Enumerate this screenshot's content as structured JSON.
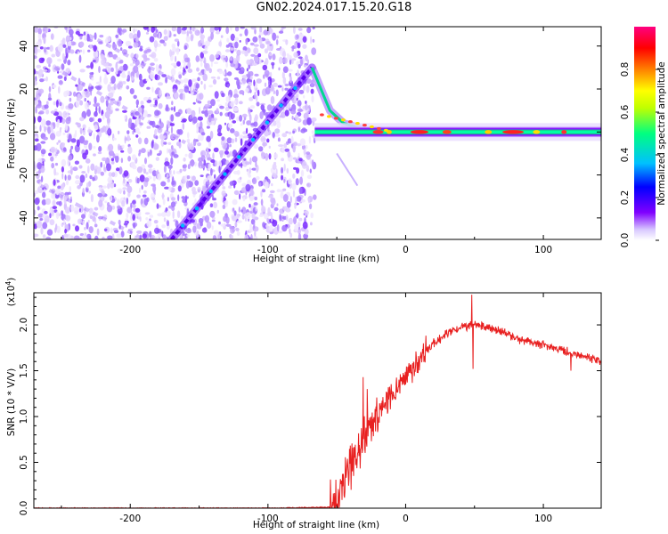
{
  "title": "GN02.2024.017.15.20.G18",
  "chart_data": [
    {
      "type": "heatmap",
      "name": "spectrogram",
      "xlabel": "Height of straight line (km)",
      "ylabel": "Frequency (Hz)",
      "xlim": [
        -270,
        142
      ],
      "ylim": [
        -50,
        49
      ],
      "xticks": [
        -200,
        -100,
        0,
        100
      ],
      "yticks": [
        -40,
        -20,
        0,
        20,
        40
      ],
      "colorbar": {
        "label": "Normalized spectral amplitude",
        "range": [
          0,
          1
        ],
        "ticks": [
          0.0,
          0.2,
          0.4,
          0.6,
          0.8
        ],
        "tick_labels": [
          "0.0",
          "0.2",
          "0.4",
          "0.6",
          "0.8"
        ],
        "colors": [
          "#ffffff",
          "#8000ff",
          "#0000ff",
          "#00c0ff",
          "#00ff80",
          "#ffff00",
          "#ff8000",
          "#ff0000",
          "#ff0080"
        ]
      },
      "noise_region": {
        "x": [
          -270,
          -66
        ],
        "y": [
          -50,
          49
        ]
      },
      "features": [
        {
          "name": "rising-trace",
          "x": [
            -170,
            -68
          ],
          "y": [
            -50,
            30
          ]
        },
        {
          "name": "drop",
          "x": [
            -68,
            -55,
            -45,
            -30
          ],
          "y": [
            30,
            10,
            4,
            1
          ]
        },
        {
          "name": "faint-branch",
          "x": [
            -50,
            -35
          ],
          "y": [
            -10,
            -25
          ]
        },
        {
          "name": "main-trace",
          "x": [
            -66,
            142
          ],
          "y": [
            0,
            0
          ]
        }
      ],
      "grid": false
    },
    {
      "type": "line",
      "name": "snr",
      "xlabel": "Height of straight line (km)",
      "ylabel": "SNR (10 * V/V)",
      "multiplier_label": "(x10",
      "multiplier_exp": "4",
      "xlim": [
        -270,
        142
      ],
      "ylim": [
        0,
        2.35
      ],
      "xticks": [
        -200,
        -100,
        0,
        100
      ],
      "yticks": [
        0.0,
        0.5,
        1.0,
        1.5,
        2.0
      ],
      "ytick_labels": [
        "0.0",
        "0.5",
        "1.0",
        "1.5",
        "2.0"
      ],
      "color": "#e82020",
      "series": [
        {
          "x": [
            -270,
            -200,
            -100,
            -55,
            -50,
            -45,
            -40,
            -35,
            -30,
            -25,
            -20,
            -15,
            -10,
            -5,
            0,
            5,
            10,
            15,
            20,
            30,
            40,
            50,
            60,
            70,
            80,
            90,
            100,
            110,
            120,
            130,
            142
          ],
          "y": [
            0.0,
            0.0,
            0.0,
            0.01,
            0.05,
            0.25,
            0.45,
            0.62,
            0.8,
            0.95,
            1.05,
            1.15,
            1.25,
            1.35,
            1.42,
            1.52,
            1.62,
            1.72,
            1.8,
            1.9,
            1.98,
            2.0,
            1.97,
            1.92,
            1.85,
            1.82,
            1.78,
            1.74,
            1.7,
            1.65,
            1.6
          ]
        }
      ],
      "spikes": [
        {
          "x": -31,
          "y": 1.43
        },
        {
          "x": -28,
          "y": 1.3
        },
        {
          "x": 48,
          "y": 2.33
        },
        {
          "x": 49,
          "y": 1.52
        },
        {
          "x": 120,
          "y": 1.5
        }
      ],
      "grid": false
    }
  ]
}
